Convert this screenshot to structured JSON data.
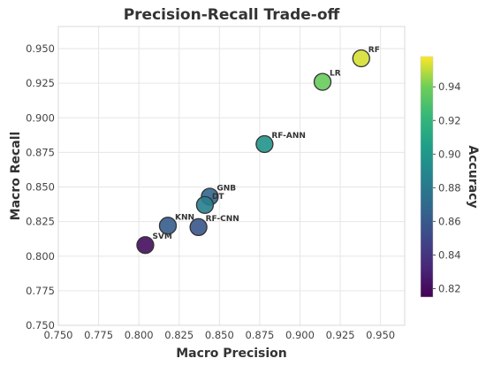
{
  "chart_data": {
    "type": "scatter",
    "title": "Precision-Recall Trade-off",
    "xlabel": "Macro Precision",
    "ylabel": "Macro Recall",
    "xlim": [
      0.75,
      0.965
    ],
    "ylim": [
      0.75,
      0.966
    ],
    "x_ticks": [
      "0.750",
      "0.775",
      "0.800",
      "0.825",
      "0.850",
      "0.875",
      "0.900",
      "0.925",
      "0.950"
    ],
    "y_ticks": [
      "0.750",
      "0.775",
      "0.800",
      "0.825",
      "0.850",
      "0.875",
      "0.900",
      "0.925",
      "0.950"
    ],
    "grid": true,
    "points": [
      {
        "label": "RF",
        "precision": 0.938,
        "recall": 0.943,
        "accuracy": 0.953
      },
      {
        "label": "LR",
        "precision": 0.914,
        "recall": 0.926,
        "accuracy": 0.938
      },
      {
        "label": "RF-ANN",
        "precision": 0.878,
        "recall": 0.881,
        "accuracy": 0.898
      },
      {
        "label": "GNB",
        "precision": 0.844,
        "recall": 0.843,
        "accuracy": 0.868
      },
      {
        "label": "DT",
        "precision": 0.841,
        "recall": 0.837,
        "accuracy": 0.884
      },
      {
        "label": "KNN",
        "precision": 0.818,
        "recall": 0.822,
        "accuracy": 0.862
      },
      {
        "label": "RF-CNN",
        "precision": 0.837,
        "recall": 0.821,
        "accuracy": 0.858
      },
      {
        "label": "SVM",
        "precision": 0.804,
        "recall": 0.808,
        "accuracy": 0.82
      }
    ],
    "colorbar": {
      "label": "Accuracy",
      "range": [
        0.815,
        0.958
      ],
      "colormap": "viridis",
      "ticks": [
        "0.82",
        "0.84",
        "0.86",
        "0.88",
        "0.90",
        "0.92",
        "0.94"
      ]
    }
  }
}
